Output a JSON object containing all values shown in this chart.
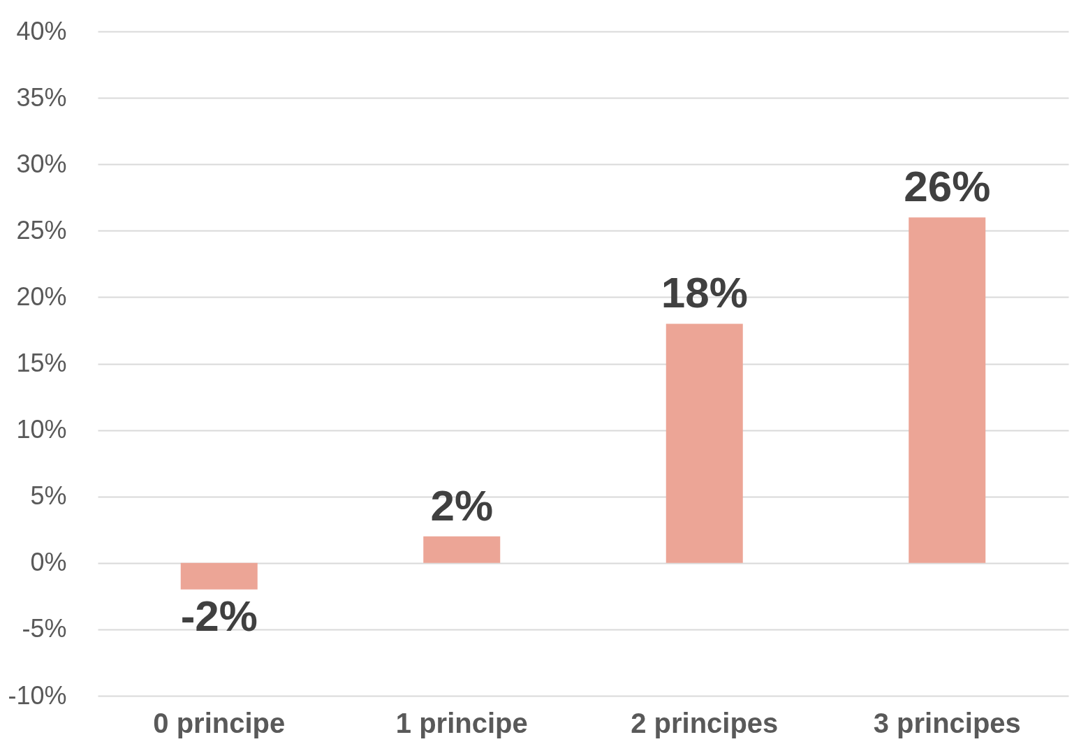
{
  "chart_data": {
    "type": "bar",
    "categories": [
      "0 principe",
      "1 principe",
      "2 principes",
      "3 principes"
    ],
    "values": [
      -2,
      2,
      18,
      26
    ],
    "value_labels": [
      "-2%",
      "2%",
      "18%",
      "26%"
    ],
    "color": "#eca596",
    "ylim": [
      -10,
      40
    ],
    "yticks": [
      {
        "value": -10,
        "label": "-10%"
      },
      {
        "value": -5,
        "label": "-5%"
      },
      {
        "value": 0,
        "label": "0%"
      },
      {
        "value": 5,
        "label": "5%"
      },
      {
        "value": 10,
        "label": "10%"
      },
      {
        "value": 15,
        "label": "15%"
      },
      {
        "value": 20,
        "label": "20%"
      },
      {
        "value": 25,
        "label": "25%"
      },
      {
        "value": 30,
        "label": "30%"
      },
      {
        "value": 35,
        "label": "35%"
      },
      {
        "value": 40,
        "label": "40%"
      }
    ],
    "grid": "y"
  }
}
